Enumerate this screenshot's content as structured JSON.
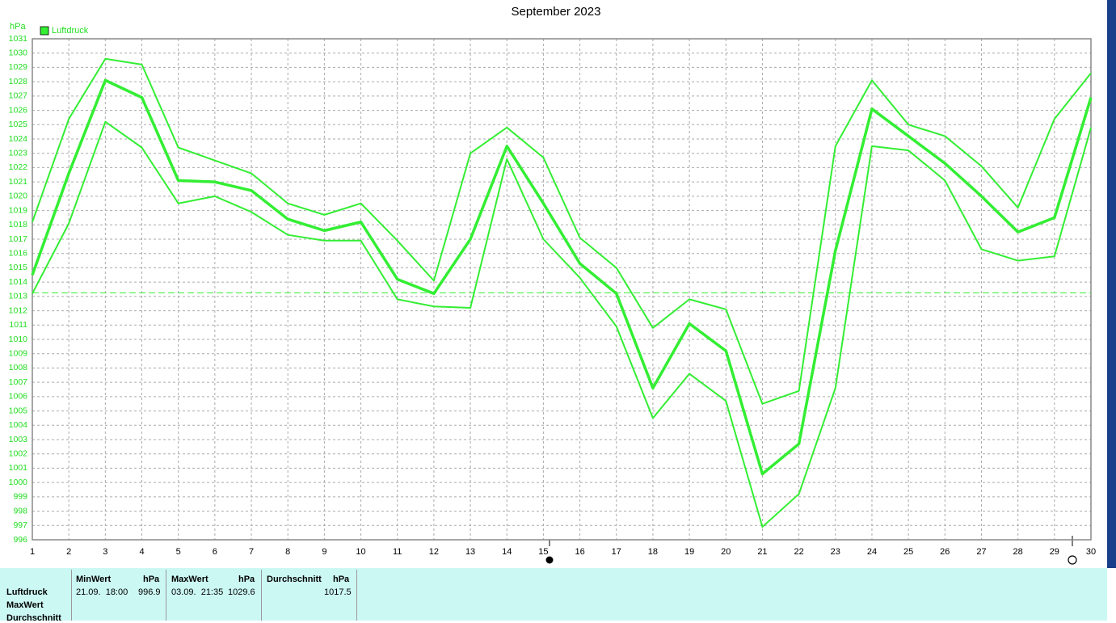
{
  "chart_data": {
    "type": "line",
    "title": "September 2023",
    "y_label": "hPa",
    "x": [
      1,
      2,
      3,
      4,
      5,
      6,
      7,
      8,
      9,
      10,
      11,
      12,
      13,
      14,
      15,
      16,
      17,
      18,
      19,
      20,
      21,
      22,
      23,
      24,
      25,
      26,
      27,
      28,
      29,
      30
    ],
    "xlim": [
      1,
      30
    ],
    "xticks": [
      1,
      2,
      3,
      4,
      5,
      6,
      7,
      8,
      9,
      10,
      11,
      12,
      13,
      14,
      15,
      16,
      17,
      18,
      19,
      20,
      21,
      22,
      23,
      24,
      25,
      26,
      27,
      28,
      29,
      30
    ],
    "ylim": [
      996,
      1031
    ],
    "yticks": [
      996,
      997,
      998,
      999,
      1000,
      1001,
      1002,
      1003,
      1004,
      1005,
      1006,
      1007,
      1008,
      1009,
      1010,
      1011,
      1012,
      1013,
      1014,
      1015,
      1016,
      1017,
      1018,
      1019,
      1020,
      1021,
      1022,
      1023,
      1024,
      1025,
      1026,
      1027,
      1028,
      1029,
      1030,
      1031
    ],
    "grid": true,
    "reference_line": 1013.25,
    "series": [
      {
        "color": "#33ee33",
        "values": [
          1018.2,
          1025.4,
          1029.6,
          1029.2,
          1023.4,
          1022.5,
          1021.6,
          1019.5,
          1018.7,
          1019.5,
          1016.9,
          1014.1,
          1023.0,
          1024.8,
          1022.7,
          1017.1,
          1015.0,
          1010.8,
          1012.8,
          1012.1,
          1005.5,
          1006.4,
          1023.5,
          1028.1,
          1025.0,
          1024.2,
          1022.1,
          1019.2,
          1025.4,
          1028.6
        ]
      },
      {
        "name": "Luftdruck",
        "color": "#33ee33",
        "values": [
          1014.5,
          1021.6,
          1028.1,
          1026.9,
          1021.1,
          1021.0,
          1020.4,
          1018.4,
          1017.6,
          1018.2,
          1014.2,
          1013.2,
          1017.0,
          1023.5,
          1019.5,
          1015.3,
          1013.2,
          1006.6,
          1011.1,
          1009.2,
          1000.6,
          1002.7,
          1016.2,
          1026.1,
          1024.2,
          1022.3,
          1020.0,
          1017.5,
          1018.5,
          1026.9
        ]
      },
      {
        "color": "#33ee33",
        "values": [
          1013.2,
          1018.1,
          1025.2,
          1023.4,
          1019.5,
          1020.0,
          1018.9,
          1017.3,
          1016.9,
          1016.9,
          1012.8,
          1012.3,
          1012.2,
          1022.6,
          1017.0,
          1014.3,
          1010.9,
          1004.5,
          1007.6,
          1005.7,
          996.9,
          999.2,
          1006.6,
          1023.5,
          1023.2,
          1021.1,
          1016.3,
          1015.5,
          1015.8,
          1024.8
        ]
      }
    ]
  },
  "table": {
    "row_labels": [
      "Luftdruck",
      "MaxWert",
      "Durchschnitt"
    ],
    "columns": [
      {
        "title": "MinWert",
        "unit": "hPa",
        "time": "21.09.  18:00",
        "value": 996.9
      },
      {
        "title": "MaxWert",
        "unit": "hPa",
        "time": "03.09.  21:35",
        "value": 1029.6
      },
      {
        "title": "Durchschnitt",
        "unit": "hPa",
        "value": 1017.5
      }
    ]
  }
}
